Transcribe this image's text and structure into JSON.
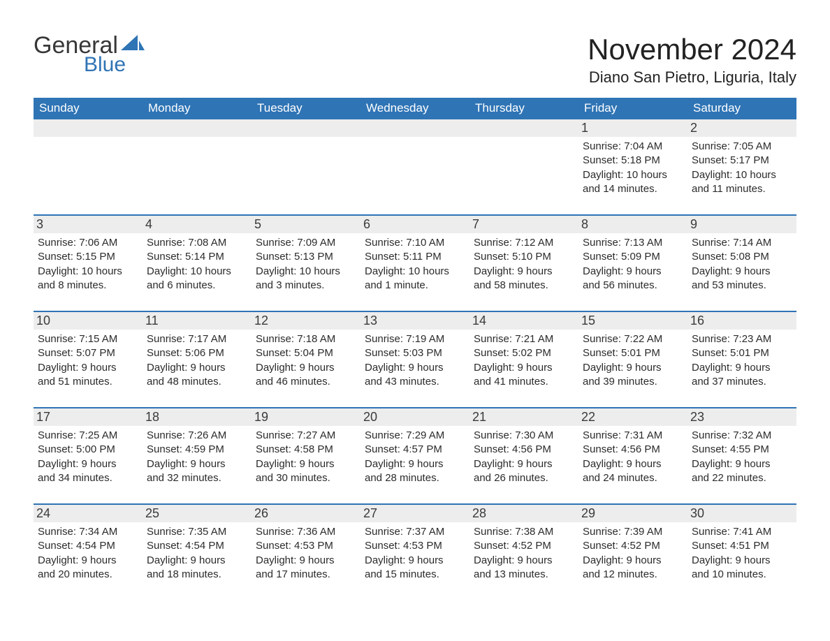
{
  "brand": {
    "name_part1": "General",
    "name_part2": "Blue",
    "text_color": "#373737",
    "accent_color": "#2f74b5"
  },
  "header": {
    "month_title": "November 2024",
    "location": "Diano San Pietro, Liguria, Italy"
  },
  "style": {
    "header_bg": "#2f74b5",
    "header_text": "#ffffff",
    "daynum_bg": "#ededed",
    "daynum_text": "#3a3a3a",
    "body_text": "#2b2b2b",
    "week_border": "#2f74b5",
    "page_bg": "#ffffff",
    "month_title_fontsize": 42,
    "location_fontsize": 22,
    "weekday_fontsize": 17,
    "daynum_fontsize": 18,
    "body_fontsize": 15
  },
  "weekdays": [
    "Sunday",
    "Monday",
    "Tuesday",
    "Wednesday",
    "Thursday",
    "Friday",
    "Saturday"
  ],
  "weeks": [
    [
      {
        "day": null
      },
      {
        "day": null
      },
      {
        "day": null
      },
      {
        "day": null
      },
      {
        "day": null
      },
      {
        "day": "1",
        "sunrise": "Sunrise: 7:04 AM",
        "sunset": "Sunset: 5:18 PM",
        "daylight1": "Daylight: 10 hours",
        "daylight2": "and 14 minutes."
      },
      {
        "day": "2",
        "sunrise": "Sunrise: 7:05 AM",
        "sunset": "Sunset: 5:17 PM",
        "daylight1": "Daylight: 10 hours",
        "daylight2": "and 11 minutes."
      }
    ],
    [
      {
        "day": "3",
        "sunrise": "Sunrise: 7:06 AM",
        "sunset": "Sunset: 5:15 PM",
        "daylight1": "Daylight: 10 hours",
        "daylight2": "and 8 minutes."
      },
      {
        "day": "4",
        "sunrise": "Sunrise: 7:08 AM",
        "sunset": "Sunset: 5:14 PM",
        "daylight1": "Daylight: 10 hours",
        "daylight2": "and 6 minutes."
      },
      {
        "day": "5",
        "sunrise": "Sunrise: 7:09 AM",
        "sunset": "Sunset: 5:13 PM",
        "daylight1": "Daylight: 10 hours",
        "daylight2": "and 3 minutes."
      },
      {
        "day": "6",
        "sunrise": "Sunrise: 7:10 AM",
        "sunset": "Sunset: 5:11 PM",
        "daylight1": "Daylight: 10 hours",
        "daylight2": "and 1 minute."
      },
      {
        "day": "7",
        "sunrise": "Sunrise: 7:12 AM",
        "sunset": "Sunset: 5:10 PM",
        "daylight1": "Daylight: 9 hours",
        "daylight2": "and 58 minutes."
      },
      {
        "day": "8",
        "sunrise": "Sunrise: 7:13 AM",
        "sunset": "Sunset: 5:09 PM",
        "daylight1": "Daylight: 9 hours",
        "daylight2": "and 56 minutes."
      },
      {
        "day": "9",
        "sunrise": "Sunrise: 7:14 AM",
        "sunset": "Sunset: 5:08 PM",
        "daylight1": "Daylight: 9 hours",
        "daylight2": "and 53 minutes."
      }
    ],
    [
      {
        "day": "10",
        "sunrise": "Sunrise: 7:15 AM",
        "sunset": "Sunset: 5:07 PM",
        "daylight1": "Daylight: 9 hours",
        "daylight2": "and 51 minutes."
      },
      {
        "day": "11",
        "sunrise": "Sunrise: 7:17 AM",
        "sunset": "Sunset: 5:06 PM",
        "daylight1": "Daylight: 9 hours",
        "daylight2": "and 48 minutes."
      },
      {
        "day": "12",
        "sunrise": "Sunrise: 7:18 AM",
        "sunset": "Sunset: 5:04 PM",
        "daylight1": "Daylight: 9 hours",
        "daylight2": "and 46 minutes."
      },
      {
        "day": "13",
        "sunrise": "Sunrise: 7:19 AM",
        "sunset": "Sunset: 5:03 PM",
        "daylight1": "Daylight: 9 hours",
        "daylight2": "and 43 minutes."
      },
      {
        "day": "14",
        "sunrise": "Sunrise: 7:21 AM",
        "sunset": "Sunset: 5:02 PM",
        "daylight1": "Daylight: 9 hours",
        "daylight2": "and 41 minutes."
      },
      {
        "day": "15",
        "sunrise": "Sunrise: 7:22 AM",
        "sunset": "Sunset: 5:01 PM",
        "daylight1": "Daylight: 9 hours",
        "daylight2": "and 39 minutes."
      },
      {
        "day": "16",
        "sunrise": "Sunrise: 7:23 AM",
        "sunset": "Sunset: 5:01 PM",
        "daylight1": "Daylight: 9 hours",
        "daylight2": "and 37 minutes."
      }
    ],
    [
      {
        "day": "17",
        "sunrise": "Sunrise: 7:25 AM",
        "sunset": "Sunset: 5:00 PM",
        "daylight1": "Daylight: 9 hours",
        "daylight2": "and 34 minutes."
      },
      {
        "day": "18",
        "sunrise": "Sunrise: 7:26 AM",
        "sunset": "Sunset: 4:59 PM",
        "daylight1": "Daylight: 9 hours",
        "daylight2": "and 32 minutes."
      },
      {
        "day": "19",
        "sunrise": "Sunrise: 7:27 AM",
        "sunset": "Sunset: 4:58 PM",
        "daylight1": "Daylight: 9 hours",
        "daylight2": "and 30 minutes."
      },
      {
        "day": "20",
        "sunrise": "Sunrise: 7:29 AM",
        "sunset": "Sunset: 4:57 PM",
        "daylight1": "Daylight: 9 hours",
        "daylight2": "and 28 minutes."
      },
      {
        "day": "21",
        "sunrise": "Sunrise: 7:30 AM",
        "sunset": "Sunset: 4:56 PM",
        "daylight1": "Daylight: 9 hours",
        "daylight2": "and 26 minutes."
      },
      {
        "day": "22",
        "sunrise": "Sunrise: 7:31 AM",
        "sunset": "Sunset: 4:56 PM",
        "daylight1": "Daylight: 9 hours",
        "daylight2": "and 24 minutes."
      },
      {
        "day": "23",
        "sunrise": "Sunrise: 7:32 AM",
        "sunset": "Sunset: 4:55 PM",
        "daylight1": "Daylight: 9 hours",
        "daylight2": "and 22 minutes."
      }
    ],
    [
      {
        "day": "24",
        "sunrise": "Sunrise: 7:34 AM",
        "sunset": "Sunset: 4:54 PM",
        "daylight1": "Daylight: 9 hours",
        "daylight2": "and 20 minutes."
      },
      {
        "day": "25",
        "sunrise": "Sunrise: 7:35 AM",
        "sunset": "Sunset: 4:54 PM",
        "daylight1": "Daylight: 9 hours",
        "daylight2": "and 18 minutes."
      },
      {
        "day": "26",
        "sunrise": "Sunrise: 7:36 AM",
        "sunset": "Sunset: 4:53 PM",
        "daylight1": "Daylight: 9 hours",
        "daylight2": "and 17 minutes."
      },
      {
        "day": "27",
        "sunrise": "Sunrise: 7:37 AM",
        "sunset": "Sunset: 4:53 PM",
        "daylight1": "Daylight: 9 hours",
        "daylight2": "and 15 minutes."
      },
      {
        "day": "28",
        "sunrise": "Sunrise: 7:38 AM",
        "sunset": "Sunset: 4:52 PM",
        "daylight1": "Daylight: 9 hours",
        "daylight2": "and 13 minutes."
      },
      {
        "day": "29",
        "sunrise": "Sunrise: 7:39 AM",
        "sunset": "Sunset: 4:52 PM",
        "daylight1": "Daylight: 9 hours",
        "daylight2": "and 12 minutes."
      },
      {
        "day": "30",
        "sunrise": "Sunrise: 7:41 AM",
        "sunset": "Sunset: 4:51 PM",
        "daylight1": "Daylight: 9 hours",
        "daylight2": "and 10 minutes."
      }
    ]
  ]
}
